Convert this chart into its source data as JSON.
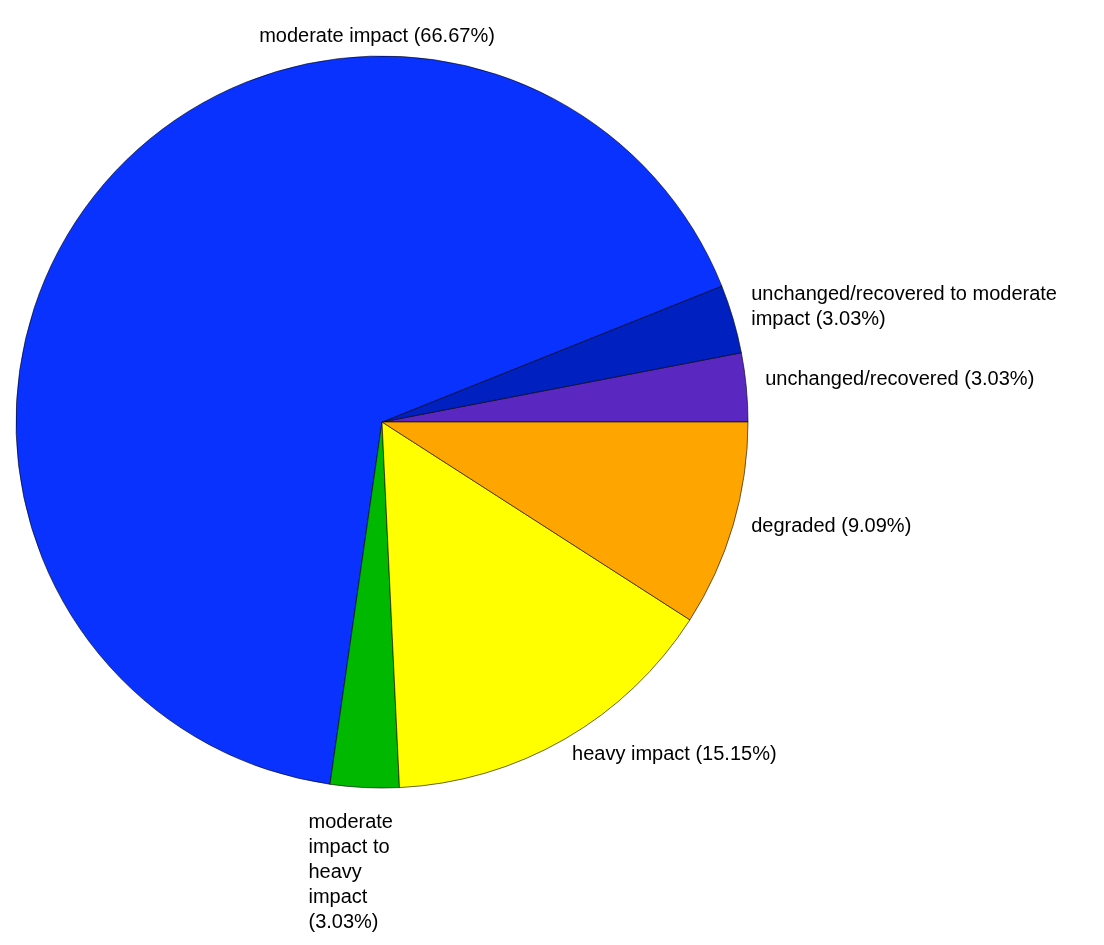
{
  "chart_data": {
    "type": "pie",
    "categories": [
      "unchanged/recovered (3.03%)",
      "unchanged/recovered to moderate impact (3.03%)",
      "moderate impact (66.67%)",
      "moderate impact to heavy impact (3.03%)",
      "heavy impact (15.15%)",
      "degraded (9.09%)"
    ],
    "values": [
      3.03,
      3.03,
      66.67,
      3.03,
      15.15,
      9.09
    ],
    "colors": [
      "#5a28c0",
      "#0020c0",
      "#0a32ff",
      "#00b800",
      "#ffff00",
      "#ffa500"
    ]
  }
}
